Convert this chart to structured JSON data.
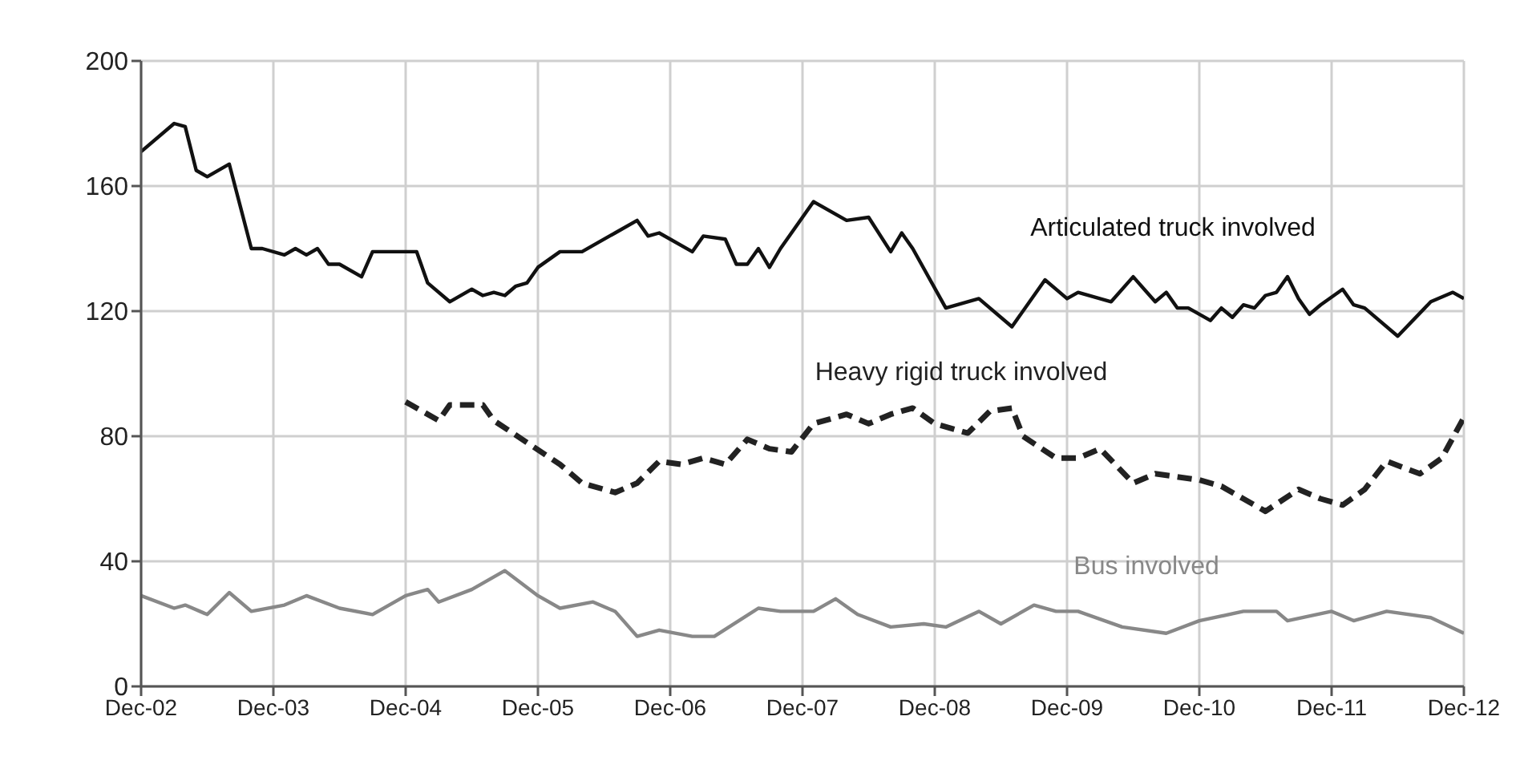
{
  "chart_data": {
    "type": "line",
    "xlim": [
      "2002-12",
      "2012-12"
    ],
    "ylim": [
      0,
      200
    ],
    "yticks": [
      0,
      40,
      80,
      120,
      160,
      200
    ],
    "xticks": [
      {
        "value": "2002-12",
        "label": "Dec-02"
      },
      {
        "value": "2003-12",
        "label": "Dec-03"
      },
      {
        "value": "2004-12",
        "label": "Dec-04"
      },
      {
        "value": "2005-12",
        "label": "Dec-05"
      },
      {
        "value": "2006-12",
        "label": "Dec-06"
      },
      {
        "value": "2007-12",
        "label": "Dec-07"
      },
      {
        "value": "2008-12",
        "label": "Dec-08"
      },
      {
        "value": "2009-12",
        "label": "Dec-09"
      },
      {
        "value": "2010-12",
        "label": "Dec-10"
      },
      {
        "value": "2011-12",
        "label": "Dec-11"
      },
      {
        "value": "2012-12",
        "label": "Dec-12"
      }
    ],
    "grid": true,
    "marker": "none",
    "series": [
      {
        "name": "Articulated truck involved",
        "color": "#111111",
        "line_style": "solid",
        "x": [
          "2002-12",
          "2003-03",
          "2003-04",
          "2003-05",
          "2003-06",
          "2003-08",
          "2003-10",
          "2003-11",
          "2004-01",
          "2004-02",
          "2004-03",
          "2004-04",
          "2004-05",
          "2004-06",
          "2004-08",
          "2004-09",
          "2004-11",
          "2005-01",
          "2005-02",
          "2005-04",
          "2005-06",
          "2005-07",
          "2005-08",
          "2005-09",
          "2005-10",
          "2005-11",
          "2005-12",
          "2006-02",
          "2006-04",
          "2006-07",
          "2006-09",
          "2006-10",
          "2006-11",
          "2007-02",
          "2007-03",
          "2007-05",
          "2007-06",
          "2007-07",
          "2007-08",
          "2007-09",
          "2007-10",
          "2008-01",
          "2008-04",
          "2008-06",
          "2008-08",
          "2008-09",
          "2008-10",
          "2009-01",
          "2009-04",
          "2009-07",
          "2009-10",
          "2009-12",
          "2010-01",
          "2010-04",
          "2010-06",
          "2010-07",
          "2010-08",
          "2010-09",
          "2010-10",
          "2010-11",
          "2011-01",
          "2011-02",
          "2011-03",
          "2011-04",
          "2011-05",
          "2011-06",
          "2011-07",
          "2011-08",
          "2011-09",
          "2011-10",
          "2011-11",
          "2012-01",
          "2012-02",
          "2012-03",
          "2012-06",
          "2012-09",
          "2012-11",
          "2012-12"
        ],
        "values": [
          171,
          180,
          179,
          165,
          163,
          167,
          140,
          140,
          138,
          140,
          138,
          140,
          135,
          135,
          131,
          139,
          139,
          139,
          129,
          123,
          127,
          125,
          126,
          125,
          128,
          129,
          134,
          139,
          139,
          145,
          149,
          144,
          145,
          139,
          144,
          143,
          135,
          135,
          140,
          134,
          140,
          155,
          149,
          150,
          139,
          145,
          140,
          121,
          124,
          115,
          130,
          124,
          126,
          123,
          131,
          127,
          123,
          126,
          121,
          121,
          117,
          121,
          118,
          122,
          121,
          125,
          126,
          131,
          124,
          119,
          122,
          127,
          122,
          121,
          112,
          123,
          126,
          124
        ]
      },
      {
        "name": "Heavy rigid truck involved",
        "color": "#222222",
        "line_style": "dashed",
        "x": [
          "2004-12",
          "2005-03",
          "2005-04",
          "2005-07",
          "2005-08",
          "2005-11",
          "2006-02",
          "2006-04",
          "2006-07",
          "2006-09",
          "2006-11",
          "2007-01",
          "2007-03",
          "2007-05",
          "2007-07",
          "2007-09",
          "2007-11",
          "2008-01",
          "2008-04",
          "2008-06",
          "2008-08",
          "2008-10",
          "2008-12",
          "2009-03",
          "2009-05",
          "2009-07",
          "2009-08",
          "2009-11",
          "2010-01",
          "2010-03",
          "2010-06",
          "2010-08",
          "2010-10",
          "2010-12",
          "2011-02",
          "2011-04",
          "2011-06",
          "2011-09",
          "2011-11",
          "2012-01",
          "2012-03",
          "2012-05",
          "2012-08",
          "2012-10",
          "2012-12"
        ],
        "values": [
          91,
          85,
          90,
          90,
          85,
          78,
          71,
          65,
          62,
          65,
          72,
          71,
          73,
          71,
          79,
          76,
          75,
          84,
          87,
          84,
          87,
          89,
          84,
          81,
          88,
          89,
          80,
          73,
          73,
          76,
          65,
          68,
          67,
          66,
          64,
          60,
          56,
          63,
          60,
          58,
          63,
          72,
          68,
          73,
          86
        ]
      },
      {
        "name": "Bus involved",
        "color": "#888888",
        "line_style": "solid",
        "x": [
          "2002-12",
          "2003-03",
          "2003-04",
          "2003-06",
          "2003-08",
          "2003-10",
          "2004-01",
          "2004-03",
          "2004-06",
          "2004-09",
          "2004-12",
          "2005-02",
          "2005-03",
          "2005-06",
          "2005-09",
          "2005-12",
          "2006-02",
          "2006-05",
          "2006-07",
          "2006-09",
          "2006-11",
          "2007-02",
          "2007-04",
          "2007-08",
          "2007-10",
          "2008-01",
          "2008-03",
          "2008-05",
          "2008-08",
          "2008-11",
          "2009-01",
          "2009-04",
          "2009-06",
          "2009-09",
          "2009-11",
          "2010-01",
          "2010-05",
          "2010-09",
          "2010-12",
          "2011-04",
          "2011-07",
          "2011-08",
          "2011-12",
          "2012-02",
          "2012-05",
          "2012-09",
          "2012-12"
        ],
        "values": [
          29,
          25,
          26,
          23,
          30,
          24,
          26,
          29,
          25,
          23,
          29,
          31,
          27,
          31,
          37,
          29,
          25,
          27,
          24,
          16,
          18,
          16,
          16,
          25,
          24,
          24,
          28,
          23,
          19,
          20,
          19,
          24,
          20,
          26,
          24,
          24,
          19,
          17,
          21,
          24,
          24,
          21,
          24,
          21,
          24,
          22,
          17
        ]
      }
    ]
  }
}
